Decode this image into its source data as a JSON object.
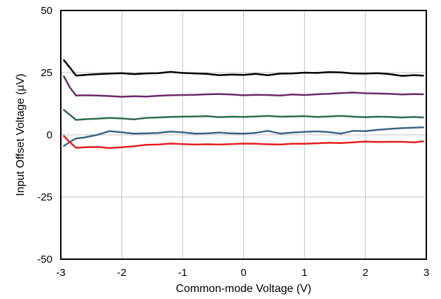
{
  "chart_data": {
    "type": "line",
    "xlabel": "Common-mode Voltage (V)",
    "ylabel": "Input Offset Voltage (μV)",
    "xlim": [
      -3,
      3
    ],
    "ylim": [
      -50,
      50
    ],
    "x_ticks": [
      "-3",
      "-2",
      "-1",
      "0",
      "1",
      "2",
      "3"
    ],
    "y_ticks": [
      "50",
      "25",
      "0",
      "-25",
      "-50"
    ],
    "grid": true,
    "series": [
      {
        "color": "#000000",
        "x": [
          -2.95,
          -2.85,
          -2.75,
          -2.6,
          -2.4,
          -2.2,
          -2.0,
          -1.8,
          -1.6,
          -1.4,
          -1.2,
          -1.0,
          -0.8,
          -0.6,
          -0.4,
          -0.2,
          0.0,
          0.2,
          0.4,
          0.6,
          0.8,
          1.0,
          1.2,
          1.4,
          1.6,
          1.8,
          2.0,
          2.2,
          2.4,
          2.6,
          2.8,
          2.95
        ],
        "values": [
          30,
          27,
          23.8,
          24.1,
          24.4,
          24.6,
          24.8,
          24.4,
          24.7,
          24.8,
          25.3,
          24.9,
          24.7,
          24.5,
          24.0,
          24.2,
          24.1,
          24.5,
          24.0,
          24.6,
          24.7,
          25.0,
          24.9,
          25.2,
          25.1,
          24.7,
          24.6,
          24.8,
          24.4,
          23.7,
          24.0,
          23.8
        ]
      },
      {
        "color": "#6b2a6b",
        "x": [
          -2.95,
          -2.85,
          -2.75,
          -2.6,
          -2.4,
          -2.2,
          -2.0,
          -1.8,
          -1.6,
          -1.4,
          -1.2,
          -1.0,
          -0.8,
          -0.6,
          -0.4,
          -0.2,
          0.0,
          0.2,
          0.4,
          0.6,
          0.8,
          1.0,
          1.2,
          1.4,
          1.6,
          1.8,
          2.0,
          2.2,
          2.4,
          2.6,
          2.8,
          2.95
        ],
        "values": [
          23.5,
          19,
          15.8,
          15.9,
          15.8,
          15.6,
          15.3,
          15.5,
          15.4,
          15.7,
          15.9,
          16.0,
          16.1,
          16.3,
          16.4,
          16.2,
          15.9,
          16.1,
          16.0,
          15.8,
          16.2,
          16.0,
          16.3,
          16.5,
          16.8,
          17.0,
          16.7,
          16.6,
          16.5,
          16.2,
          16.4,
          16.3
        ]
      },
      {
        "color": "#2e6b4e",
        "x": [
          -2.95,
          -2.85,
          -2.75,
          -2.6,
          -2.4,
          -2.2,
          -2.0,
          -1.8,
          -1.6,
          -1.4,
          -1.2,
          -1.0,
          -0.8,
          -0.6,
          -0.4,
          -0.2,
          0.0,
          0.2,
          0.4,
          0.6,
          0.8,
          1.0,
          1.2,
          1.4,
          1.6,
          1.8,
          2.0,
          2.2,
          2.4,
          2.6,
          2.8,
          2.95
        ],
        "values": [
          10,
          8,
          6.0,
          6.3,
          6.5,
          6.8,
          6.6,
          6.2,
          6.8,
          7.0,
          7.2,
          7.3,
          7.4,
          7.5,
          7.1,
          7.3,
          7.2,
          7.4,
          7.6,
          7.3,
          7.4,
          7.5,
          7.2,
          7.4,
          7.6,
          7.3,
          7.1,
          7.3,
          7.2,
          7.0,
          7.2,
          7.0
        ]
      },
      {
        "color": "#3a6585",
        "x": [
          -2.95,
          -2.85,
          -2.75,
          -2.6,
          -2.4,
          -2.2,
          -2.0,
          -1.8,
          -1.6,
          -1.4,
          -1.2,
          -1.0,
          -0.8,
          -0.6,
          -0.4,
          -0.2,
          0.0,
          0.2,
          0.4,
          0.6,
          0.8,
          1.0,
          1.2,
          1.4,
          1.6,
          1.8,
          2.0,
          2.2,
          2.4,
          2.6,
          2.8,
          2.95
        ],
        "values": [
          -4.5,
          -2.8,
          -1.5,
          -1.0,
          0.0,
          1.5,
          1.0,
          0.5,
          0.6,
          0.8,
          1.3,
          1.0,
          0.5,
          0.6,
          0.9,
          0.6,
          0.5,
          0.8,
          1.6,
          0.5,
          0.9,
          1.2,
          1.4,
          1.1,
          0.5,
          1.6,
          1.5,
          2.0,
          2.4,
          2.7,
          2.9,
          3.0
        ]
      },
      {
        "color": "#e31e1e",
        "x": [
          -2.95,
          -2.85,
          -2.75,
          -2.6,
          -2.4,
          -2.2,
          -2.0,
          -1.8,
          -1.6,
          -1.4,
          -1.2,
          -1.0,
          -0.8,
          -0.6,
          -0.4,
          -0.2,
          0.0,
          0.2,
          0.4,
          0.6,
          0.8,
          1.0,
          1.2,
          1.4,
          1.6,
          1.8,
          2.0,
          2.2,
          2.4,
          2.6,
          2.8,
          2.95
        ],
        "values": [
          -0.5,
          -3.0,
          -5.2,
          -5.0,
          -4.9,
          -5.3,
          -5.0,
          -4.6,
          -4.0,
          -3.9,
          -3.5,
          -3.7,
          -3.9,
          -3.8,
          -3.9,
          -3.7,
          -3.5,
          -3.6,
          -3.8,
          -3.9,
          -3.6,
          -3.6,
          -3.4,
          -3.2,
          -3.3,
          -3.0,
          -2.7,
          -2.9,
          -2.8,
          -2.8,
          -3.0,
          -2.6
        ]
      }
    ]
  }
}
